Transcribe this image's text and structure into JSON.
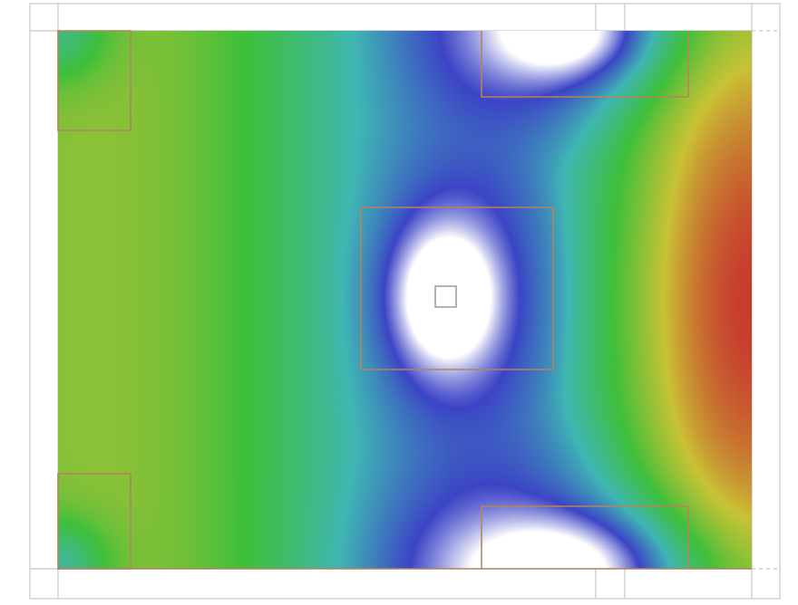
{
  "view": {
    "type": "heatmap-floorplan",
    "grid": false,
    "legend": "none"
  },
  "palette": {
    "heat_stops": [
      "#ffffff",
      "#3c44c6",
      "#3fb6b4",
      "#3fbf3a",
      "#c9c235",
      "#c7392d"
    ],
    "zone_outline": "#b7835b",
    "frame_line": "#c8c8c8",
    "marker_fill": "#ffffff",
    "marker_stroke": "#9a9a9a"
  },
  "heat_sources": [
    {
      "id": "wall-left",
      "value": 0.72
    },
    {
      "id": "wall-right",
      "value": 1.0
    },
    {
      "id": "fixture-center",
      "value": 0.0
    },
    {
      "id": "fixture-top",
      "value": 0.0
    },
    {
      "id": "fixture-bottom",
      "value": 0.0
    }
  ],
  "zones": [
    {
      "name": "zone-top-left"
    },
    {
      "name": "zone-bottom-left"
    },
    {
      "name": "zone-top-right"
    },
    {
      "name": "zone-center"
    },
    {
      "name": "zone-bottom-right"
    }
  ],
  "markers": [
    {
      "name": "center-sensor-marker",
      "icon": "square-marker-icon"
    }
  ]
}
